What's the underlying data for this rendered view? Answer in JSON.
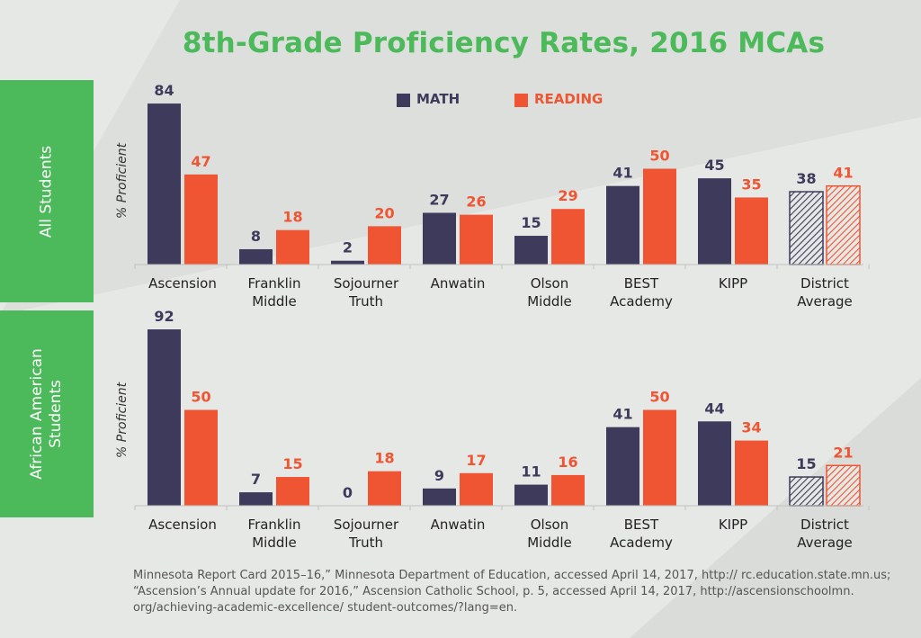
{
  "title": "8th-Grade Proficiency Rates, 2016 MCAs",
  "legend": {
    "math": "MATH",
    "reading": "READING"
  },
  "colors": {
    "math": "#3d3a5c",
    "reading": "#ef5532",
    "accent": "#4cb95a"
  },
  "ylabel": "% Proficient",
  "source_lines": [
    "Minnesota Report Card 2015–16,” Minnesota Department of Education, accessed April 14, 2017, http:// rc.education.state.mn.us;",
    "“Ascension’s Annual update for 2016,” Ascension Catholic School, p. 5, accessed April 14, 2017, http://ascensionschoolmn.",
    "org/achieving-academic-excellence/ student-outcomes/?lang=en."
  ],
  "chart_data": [
    {
      "type": "bar",
      "group_label": "All Students",
      "categories": [
        [
          "Ascension"
        ],
        [
          "Franklin",
          "Middle"
        ],
        [
          "Sojourner",
          "Truth"
        ],
        [
          "Anwatin"
        ],
        [
          "Olson",
          "Middle"
        ],
        [
          "BEST",
          "Academy"
        ],
        [
          "KIPP"
        ],
        [
          "District",
          "Average"
        ]
      ],
      "ylabel": "% Proficient",
      "series": [
        {
          "name": "MATH",
          "values": [
            84,
            8,
            2,
            27,
            15,
            41,
            45,
            38
          ]
        },
        {
          "name": "READING",
          "values": [
            47,
            18,
            20,
            26,
            29,
            50,
            35,
            41
          ]
        }
      ],
      "hatched_categories": [
        "District Average"
      ]
    },
    {
      "type": "bar",
      "group_label": "African American Students",
      "categories": [
        [
          "Ascension"
        ],
        [
          "Franklin",
          "Middle"
        ],
        [
          "Sojourner",
          "Truth"
        ],
        [
          "Anwatin"
        ],
        [
          "Olson",
          "Middle"
        ],
        [
          "BEST",
          "Academy"
        ],
        [
          "KIPP"
        ],
        [
          "District",
          "Average"
        ]
      ],
      "ylabel": "% Proficient",
      "series": [
        {
          "name": "MATH",
          "values": [
            92,
            7,
            0,
            9,
            11,
            41,
            44,
            15
          ]
        },
        {
          "name": "READING",
          "values": [
            50,
            15,
            18,
            17,
            16,
            50,
            34,
            21
          ]
        }
      ],
      "hatched_categories": [
        "District Average"
      ]
    }
  ]
}
